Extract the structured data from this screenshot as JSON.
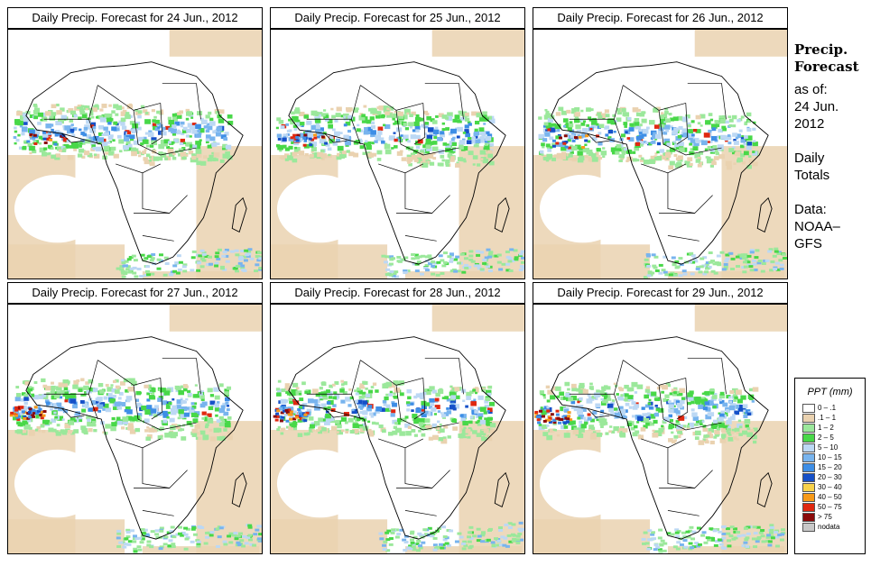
{
  "panels": [
    {
      "title": "Daily Precip. Forecast for  24 Jun., 2012"
    },
    {
      "title": "Daily Precip. Forecast for  25 Jun., 2012"
    },
    {
      "title": "Daily Precip. Forecast for  26 Jun., 2012"
    },
    {
      "title": "Daily Precip. Forecast for  27 Jun., 2012"
    },
    {
      "title": "Daily Precip. Forecast for  28 Jun., 2012"
    },
    {
      "title": "Daily Precip. Forecast for  29 Jun., 2012"
    }
  ],
  "sidebar": {
    "heading": [
      "Precip.",
      "Forecast"
    ],
    "lines": [
      "as of:",
      "24 Jun.",
      "2012",
      "",
      "Daily",
      "Totals",
      "",
      "Data:",
      "NOAA–",
      "GFS"
    ]
  },
  "legend": {
    "title": "PPT (mm)",
    "items": [
      {
        "label": "0 – .1",
        "color": "#ffffff"
      },
      {
        "label": ".1 – 1",
        "color": "#ead2b0"
      },
      {
        "label": "1 – 2",
        "color": "#9be89b"
      },
      {
        "label": "2 – 5",
        "color": "#48d848"
      },
      {
        "label": "5 – 10",
        "color": "#bcd8f4"
      },
      {
        "label": "10 – 15",
        "color": "#78b4ee"
      },
      {
        "label": "15 – 20",
        "color": "#3e8ee6"
      },
      {
        "label": "20 – 30",
        "color": "#1550c8"
      },
      {
        "label": "30 – 40",
        "color": "#f8d24a"
      },
      {
        "label": "40 – 50",
        "color": "#f89a18"
      },
      {
        "label": "50 – 75",
        "color": "#e02810"
      },
      {
        "label": "> 75",
        "color": "#8a0a0a"
      },
      {
        "label": "nodata",
        "color": "#c8c8c8"
      }
    ]
  }
}
